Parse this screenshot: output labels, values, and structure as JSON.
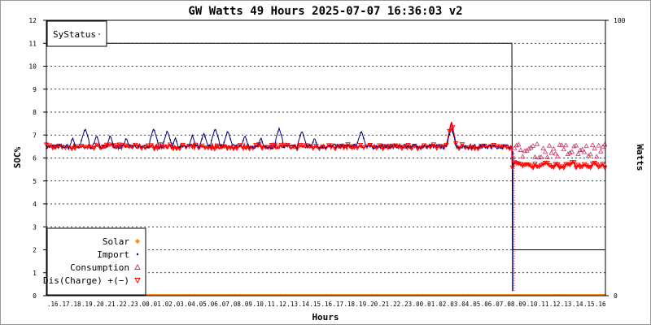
{
  "chart_data": {
    "type": "line",
    "title": "GW Watts 49 Hours 2025-07-07 16:36:03 v2",
    "xlabel": "Hours",
    "ylabel_left": "SOC%",
    "ylabel_right": "Watts",
    "y_left_ticks": [
      "0",
      "1",
      "2",
      "3",
      "4",
      "5",
      "6",
      "7",
      "8",
      "9",
      "10",
      "11",
      "12"
    ],
    "y_left_range": [
      0,
      12
    ],
    "y_right_ticks": [
      "0",
      "100"
    ],
    "y_right_range": [
      0,
      100
    ],
    "grid": "horizontal dotted",
    "x_hours": [
      "16",
      "17",
      "18",
      "19",
      "20",
      "21",
      "22",
      "23",
      "00",
      "01",
      "02",
      "03",
      "04",
      "05",
      "06",
      "07",
      "08",
      "09",
      "10",
      "11",
      "12",
      "13",
      "14",
      "15",
      "16",
      "17",
      "18",
      "19",
      "20",
      "21",
      "22",
      "23",
      "00",
      "01",
      "02",
      "03",
      "04",
      "05",
      "06",
      "07",
      "08",
      "09",
      "10",
      "11",
      "12",
      "13",
      "14",
      "15",
      "16"
    ],
    "systatus_box": {
      "label": "SyStatus",
      "legend_placement": "top-left"
    },
    "systatus": {
      "x": [
        0,
        40.8,
        40.85,
        49
      ],
      "values": [
        11,
        11,
        2,
        2
      ]
    },
    "legend_placement": "bottom-left",
    "series": [
      {
        "name": "Solar",
        "color": "#ff8c00",
        "marker": "diamond"
      },
      {
        "name": "Import",
        "color": "#000080",
        "marker": "dot"
      },
      {
        "name": "Consumption",
        "color": "#cc3366",
        "marker": "triangle-up"
      },
      {
        "name": "Dis(Charge) +(−)",
        "color": "#ff0000",
        "marker": "triangle-down"
      }
    ],
    "series_levels": {
      "solar": 0.0,
      "import_baseline": 6.5,
      "import_spikes": [
        [
          2.3,
          6.9
        ],
        [
          3.4,
          7.3
        ],
        [
          4.4,
          7.0
        ],
        [
          5.6,
          7.0
        ],
        [
          7.0,
          6.9
        ],
        [
          9.4,
          7.3
        ],
        [
          10.6,
          7.2
        ],
        [
          11.3,
          6.9
        ],
        [
          12.8,
          7.0
        ],
        [
          13.8,
          7.1
        ],
        [
          14.8,
          7.3
        ],
        [
          15.9,
          7.2
        ],
        [
          17.4,
          7.0
        ],
        [
          18.8,
          6.9
        ],
        [
          20.4,
          7.3
        ],
        [
          22.4,
          7.2
        ],
        [
          23.5,
          6.9
        ],
        [
          27.6,
          7.2
        ],
        [
          35.5,
          7.3
        ]
      ],
      "discharge_baseline": 6.5,
      "discharge_peak": [
        35.5,
        7.6
      ],
      "consumption_after_cutover": 6.2,
      "discharge_after_cutover": 5.7,
      "cutover_hour": 40.8
    }
  }
}
